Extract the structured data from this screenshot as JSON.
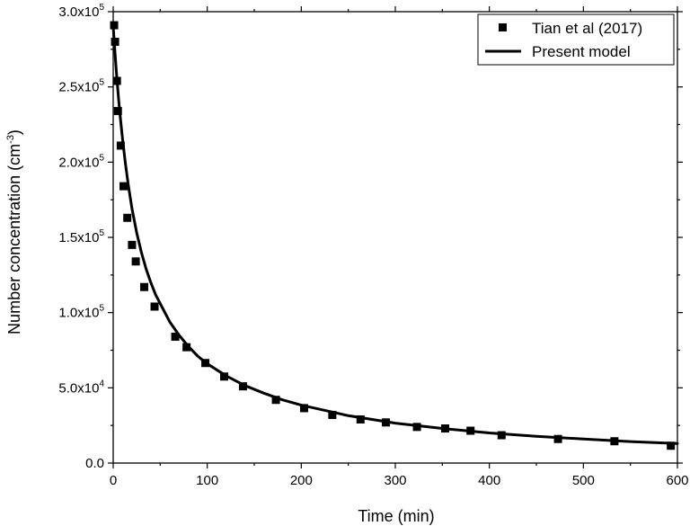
{
  "chart_data": {
    "type": "scatter",
    "title": "",
    "xlabel": "Time (min)",
    "ylabel": "Number concentration (cm-3)",
    "ylabel_main": "Number concentration (cm",
    "ylabel_sup": "-3",
    "ylabel_close": ")",
    "xlim": [
      0,
      600
    ],
    "ylim": [
      0,
      300000
    ],
    "x_ticks": [
      0,
      100,
      200,
      300,
      400,
      500,
      600
    ],
    "x_tick_labels": [
      "0",
      "100",
      "200",
      "300",
      "400",
      "500",
      "600"
    ],
    "y_ticks": [
      0,
      50000,
      100000,
      150000,
      200000,
      250000,
      300000
    ],
    "y_tick_labels": [
      {
        "base": "0.0",
        "exp": ""
      },
      {
        "base": "5.0x10",
        "exp": "4"
      },
      {
        "base": "1.0x10",
        "exp": "5"
      },
      {
        "base": "1.5x10",
        "exp": "5"
      },
      {
        "base": "2.0x10",
        "exp": "5"
      },
      {
        "base": "2.5x10",
        "exp": "5"
      },
      {
        "base": "3.0x10",
        "exp": "5"
      }
    ],
    "grid": false,
    "legend_position": "top-right",
    "series": [
      {
        "name": "Tian et al (2017)",
        "kind": "scatter",
        "marker": "square",
        "color": "#000000",
        "points": [
          [
            1,
            291000
          ],
          [
            2,
            280000
          ],
          [
            4,
            254000
          ],
          [
            5,
            234000
          ],
          [
            8,
            211000
          ],
          [
            11,
            184000
          ],
          [
            15,
            163000
          ],
          [
            20,
            145000
          ],
          [
            24,
            134000
          ],
          [
            33,
            117000
          ],
          [
            44,
            104000
          ],
          [
            66,
            84000
          ],
          [
            78,
            77000
          ],
          [
            98,
            66500
          ],
          [
            118,
            57500
          ],
          [
            138,
            51000
          ],
          [
            173,
            42000
          ],
          [
            203,
            36500
          ],
          [
            233,
            32000
          ],
          [
            263,
            29000
          ],
          [
            290,
            27000
          ],
          [
            323,
            24000
          ],
          [
            353,
            23000
          ],
          [
            380,
            21500
          ],
          [
            413,
            18500
          ],
          [
            473,
            16000
          ],
          [
            533,
            14500
          ],
          [
            593,
            11500
          ]
        ]
      },
      {
        "name": "Present model",
        "kind": "line",
        "color": "#000000",
        "points": [
          [
            0,
            290000
          ],
          [
            1,
            281000
          ],
          [
            2,
            272000
          ],
          [
            3,
            263000
          ],
          [
            4,
            255000
          ],
          [
            6,
            240000
          ],
          [
            8,
            227000
          ],
          [
            10,
            215000
          ],
          [
            13,
            199000
          ],
          [
            16,
            185000
          ],
          [
            20,
            169000
          ],
          [
            25,
            153000
          ],
          [
            30,
            140000
          ],
          [
            35,
            129000
          ],
          [
            40,
            120000
          ],
          [
            45,
            112000
          ],
          [
            50,
            106000
          ],
          [
            60,
            94000
          ],
          [
            70,
            85000
          ],
          [
            80,
            77500
          ],
          [
            90,
            71000
          ],
          [
            100,
            66000
          ],
          [
            120,
            58000
          ],
          [
            140,
            51500
          ],
          [
            160,
            46500
          ],
          [
            180,
            42000
          ],
          [
            200,
            38500
          ],
          [
            250,
            31500
          ],
          [
            300,
            26500
          ],
          [
            350,
            23000
          ],
          [
            400,
            20000
          ],
          [
            450,
            17800
          ],
          [
            500,
            16000
          ],
          [
            550,
            14300
          ],
          [
            600,
            13000
          ]
        ]
      }
    ]
  }
}
